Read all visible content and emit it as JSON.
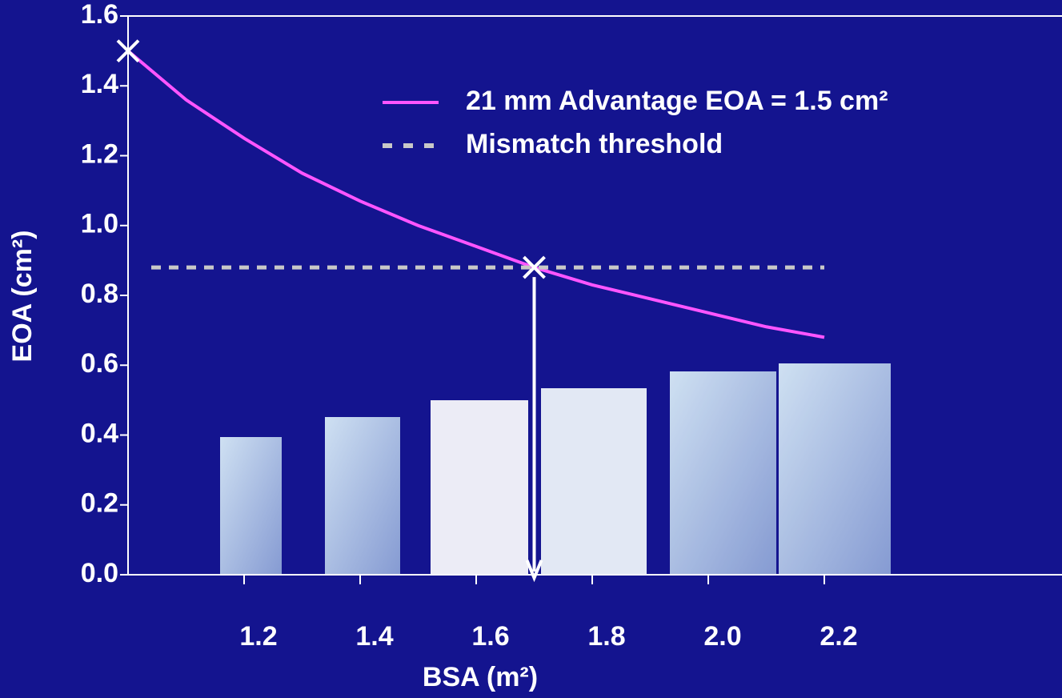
{
  "chart_data": {
    "type": "line",
    "xlabel": "BSA (m²)",
    "ylabel": "EOA (cm²)",
    "xlim": [
      1.0,
      2.6
    ],
    "ylim": [
      0,
      1.6
    ],
    "xticks": [
      1.2,
      1.4,
      1.6,
      1.8,
      {
        "value": 2.0,
        "label": "2.0"
      },
      2.2
    ],
    "yticks": [
      {
        "value": 0,
        "label": "0.0"
      },
      0.2,
      0.4,
      0.6,
      0.8,
      {
        "value": 1.0,
        "label": "1.0"
      },
      1.2,
      1.4,
      1.6
    ],
    "legend": "top-right",
    "series": [
      {
        "name": "21 mm Advantage EOA = 1.5 cm²",
        "color": "#ff55ff",
        "dashed": false,
        "x": [
          1.0,
          1.1,
          1.2,
          1.3,
          1.4,
          1.5,
          1.6,
          1.7,
          1.8,
          1.9,
          2.0,
          2.1,
          2.2
        ],
        "values": [
          1.5,
          1.36,
          1.25,
          1.15,
          1.07,
          1.0,
          0.94,
          0.88,
          0.83,
          0.79,
          0.75,
          0.71,
          0.68
        ]
      },
      {
        "name": "Mismatch threshold",
        "color": "#c8c8c8",
        "dashed": true,
        "x": [
          1.04,
          2.2
        ],
        "values": [
          0.88,
          0.88
        ]
      }
    ],
    "markers": [
      {
        "x": 1.0,
        "y": 1.5
      },
      {
        "x": 1.7,
        "y": 0.88
      }
    ]
  }
}
